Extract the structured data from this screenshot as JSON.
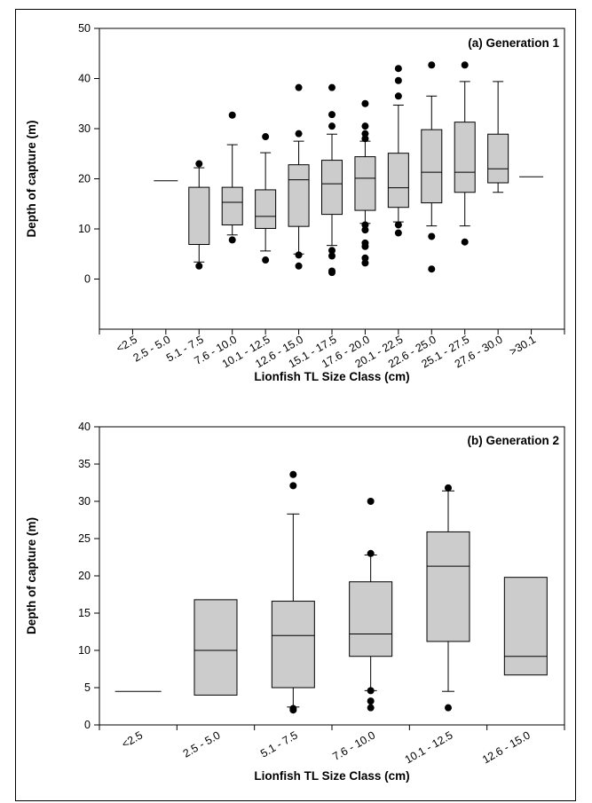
{
  "chart_data": [
    {
      "type": "box",
      "title": "(a) Generation 1",
      "xlabel": "Lionfish TL Size Class (cm)",
      "ylabel": "Depth of capture (m)",
      "ylim": [
        -10,
        50
      ],
      "yticks": [
        0,
        10,
        20,
        30,
        40,
        50
      ],
      "grid": false,
      "categories": [
        "<2.5",
        "2.5 - 5.0",
        "5.1 - 7.5",
        "7.6 - 10.0",
        "10.1 - 12.5",
        "12.6 - 15.0",
        "15.1 - 17.5",
        "17.6 - 20.0",
        "20.1 - 22.5",
        "22.6 - 25.0",
        "25.1 - 27.5",
        "27.6 - 30.0",
        ">30.1"
      ],
      "boxes": [
        {
          "category": "<2.5",
          "single": null
        },
        {
          "category": "2.5 - 5.0",
          "single": 19.6
        },
        {
          "category": "5.1 - 7.5",
          "q1": 6.9,
          "median": 6.9,
          "q3": 18.3,
          "wlow": 3.4,
          "whigh": 22.2,
          "outliers": [
            2.6,
            23.0
          ]
        },
        {
          "category": "7.6 - 10.0",
          "q1": 10.8,
          "median": 15.3,
          "q3": 18.3,
          "wlow": 8.8,
          "whigh": 26.8,
          "outliers": [
            7.8,
            32.7
          ]
        },
        {
          "category": "10.1 - 12.5",
          "q1": 10.1,
          "median": 12.5,
          "q3": 17.8,
          "wlow": 5.6,
          "whigh": 25.2,
          "outliers": [
            3.8,
            28.4
          ]
        },
        {
          "category": "12.6 - 15.0",
          "q1": 10.5,
          "median": 19.8,
          "q3": 22.8,
          "wlow": 5.0,
          "whigh": 27.5,
          "outliers": [
            2.6,
            4.8,
            29.0,
            38.2
          ]
        },
        {
          "category": "15.1 - 17.5",
          "q1": 12.9,
          "median": 19.0,
          "q3": 23.7,
          "wlow": 6.7,
          "whigh": 28.9,
          "outliers": [
            1.3,
            1.6,
            4.6,
            5.7,
            30.5,
            32.8,
            38.2
          ]
        },
        {
          "category": "17.6 - 20.0",
          "q1": 13.7,
          "median": 20.1,
          "q3": 24.4,
          "wlow": 11.1,
          "whigh": 27.5,
          "outliers": [
            3.2,
            4.2,
            6.5,
            7.2,
            9.8,
            10.8,
            28.0,
            29.0,
            30.5,
            35.0
          ]
        },
        {
          "category": "20.1 - 22.5",
          "q1": 14.3,
          "median": 18.2,
          "q3": 25.1,
          "wlow": 11.4,
          "whigh": 34.7,
          "outliers": [
            9.2,
            10.8,
            36.5,
            39.6,
            42.0
          ]
        },
        {
          "category": "22.6 - 25.0",
          "q1": 15.2,
          "median": 21.3,
          "q3": 29.8,
          "wlow": 10.6,
          "whigh": 36.5,
          "outliers": [
            2.0,
            8.5,
            42.7
          ]
        },
        {
          "category": "25.1 - 27.5",
          "q1": 17.3,
          "median": 21.3,
          "q3": 31.3,
          "wlow": 10.6,
          "whigh": 39.4,
          "outliers": [
            7.4,
            42.7
          ]
        },
        {
          "category": "27.6 - 30.0",
          "q1": 19.2,
          "median": 22.0,
          "q3": 28.9,
          "wlow": 17.3,
          "whigh": 39.4,
          "outliers": []
        },
        {
          "category": ">30.1",
          "single": 20.4
        }
      ]
    },
    {
      "type": "box",
      "title": "(b) Generation 2",
      "xlabel": "Lionfish TL Size Class (cm)",
      "ylabel": "Depth of capture (m)",
      "ylim": [
        0,
        40
      ],
      "yticks": [
        0,
        5,
        10,
        15,
        20,
        25,
        30,
        35,
        40
      ],
      "grid": false,
      "categories": [
        "<2.5",
        "2.5 - 5.0",
        "5.1 - 7.5",
        "7.6 - 10.0",
        "10.1 - 12.5",
        "12.6 - 15.0"
      ],
      "boxes": [
        {
          "category": "<2.5",
          "single": 4.5
        },
        {
          "category": "2.5 - 5.0",
          "q1": 4.0,
          "median": 10.0,
          "q3": 16.8,
          "wlow": null,
          "whigh": null,
          "outliers": []
        },
        {
          "category": "5.1 - 7.5",
          "q1": 5.0,
          "median": 12.0,
          "q3": 16.6,
          "wlow": 2.4,
          "whigh": 28.3,
          "outliers": [
            2.0,
            2.2,
            32.1,
            33.6
          ]
        },
        {
          "category": "7.6 - 10.0",
          "q1": 9.2,
          "median": 12.2,
          "q3": 19.2,
          "wlow": 4.6,
          "whigh": 22.8,
          "outliers": [
            2.3,
            3.2,
            4.6,
            23.0,
            30.0
          ]
        },
        {
          "category": "10.1 - 12.5",
          "q1": 11.2,
          "median": 21.3,
          "q3": 25.9,
          "wlow": 4.5,
          "whigh": 31.4,
          "outliers": [
            2.3,
            31.8
          ]
        },
        {
          "category": "12.6 - 15.0",
          "q1": 6.7,
          "median": 9.2,
          "q3": 19.8,
          "wlow": null,
          "whigh": null,
          "outliers": []
        }
      ]
    }
  ]
}
